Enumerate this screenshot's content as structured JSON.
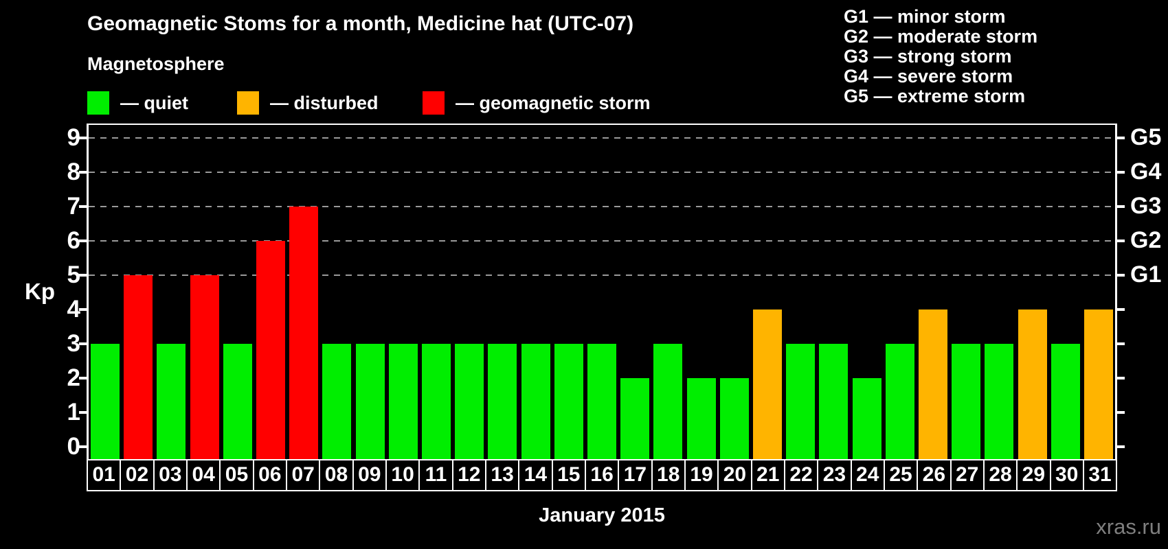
{
  "title": "Geomagnetic Stoms for a month, Medicine hat (UTC-07)",
  "subtitle": "Magnetosphere",
  "legend": {
    "items": [
      {
        "key": "quiet",
        "label": "— quiet",
        "color": "#00EE00"
      },
      {
        "key": "disturbed",
        "label": "— disturbed",
        "color": "#FFB400"
      },
      {
        "key": "storm",
        "label": "— geomagnetic storm",
        "color": "#FF0000"
      }
    ]
  },
  "g_legend": [
    "G1 — minor storm",
    "G2 — moderate storm",
    "G3 — strong storm",
    "G4 — severe storm",
    "G5 — extreme storm"
  ],
  "axes": {
    "y_label": "Kp",
    "y_ticks": [
      0,
      1,
      2,
      3,
      4,
      5,
      6,
      7,
      8,
      9
    ],
    "right_labels": [
      {
        "value": 5,
        "label": "G1"
      },
      {
        "value": 6,
        "label": "G2"
      },
      {
        "value": 7,
        "label": "G3"
      },
      {
        "value": 8,
        "label": "G4"
      },
      {
        "value": 9,
        "label": "G5"
      }
    ]
  },
  "footer": {
    "x_label": "January 2015"
  },
  "watermark": "xras.ru",
  "chart_data": {
    "type": "bar",
    "title": "Geomagnetic Stoms for a month, Medicine hat (UTC-07)",
    "xlabel": "January 2015",
    "ylabel": "Kp",
    "ylim": [
      0,
      9
    ],
    "grid": "dashed horizontal lines at Kp 5-9 only",
    "legend_position": "top-left colors, top-right G-scale",
    "categories": [
      "01",
      "02",
      "03",
      "04",
      "05",
      "06",
      "07",
      "08",
      "09",
      "10",
      "11",
      "12",
      "13",
      "14",
      "15",
      "16",
      "17",
      "18",
      "19",
      "20",
      "21",
      "22",
      "23",
      "24",
      "25",
      "26",
      "27",
      "28",
      "29",
      "30",
      "31"
    ],
    "values": [
      3,
      5,
      3,
      5,
      3,
      6,
      7,
      3,
      3,
      3,
      3,
      3,
      3,
      3,
      3,
      3,
      2,
      3,
      2,
      2,
      4,
      3,
      3,
      2,
      3,
      4,
      3,
      3,
      4,
      3,
      4
    ],
    "status": [
      "quiet",
      "storm",
      "quiet",
      "storm",
      "quiet",
      "storm",
      "storm",
      "quiet",
      "quiet",
      "quiet",
      "quiet",
      "quiet",
      "quiet",
      "quiet",
      "quiet",
      "quiet",
      "quiet",
      "quiet",
      "quiet",
      "quiet",
      "disturbed",
      "quiet",
      "quiet",
      "quiet",
      "quiet",
      "disturbed",
      "quiet",
      "quiet",
      "disturbed",
      "quiet",
      "disturbed"
    ],
    "colors": {
      "quiet": "#00EE00",
      "disturbed": "#FFB400",
      "storm": "#FF0000"
    },
    "gridline_levels": [
      5,
      6,
      7,
      8,
      9
    ]
  }
}
